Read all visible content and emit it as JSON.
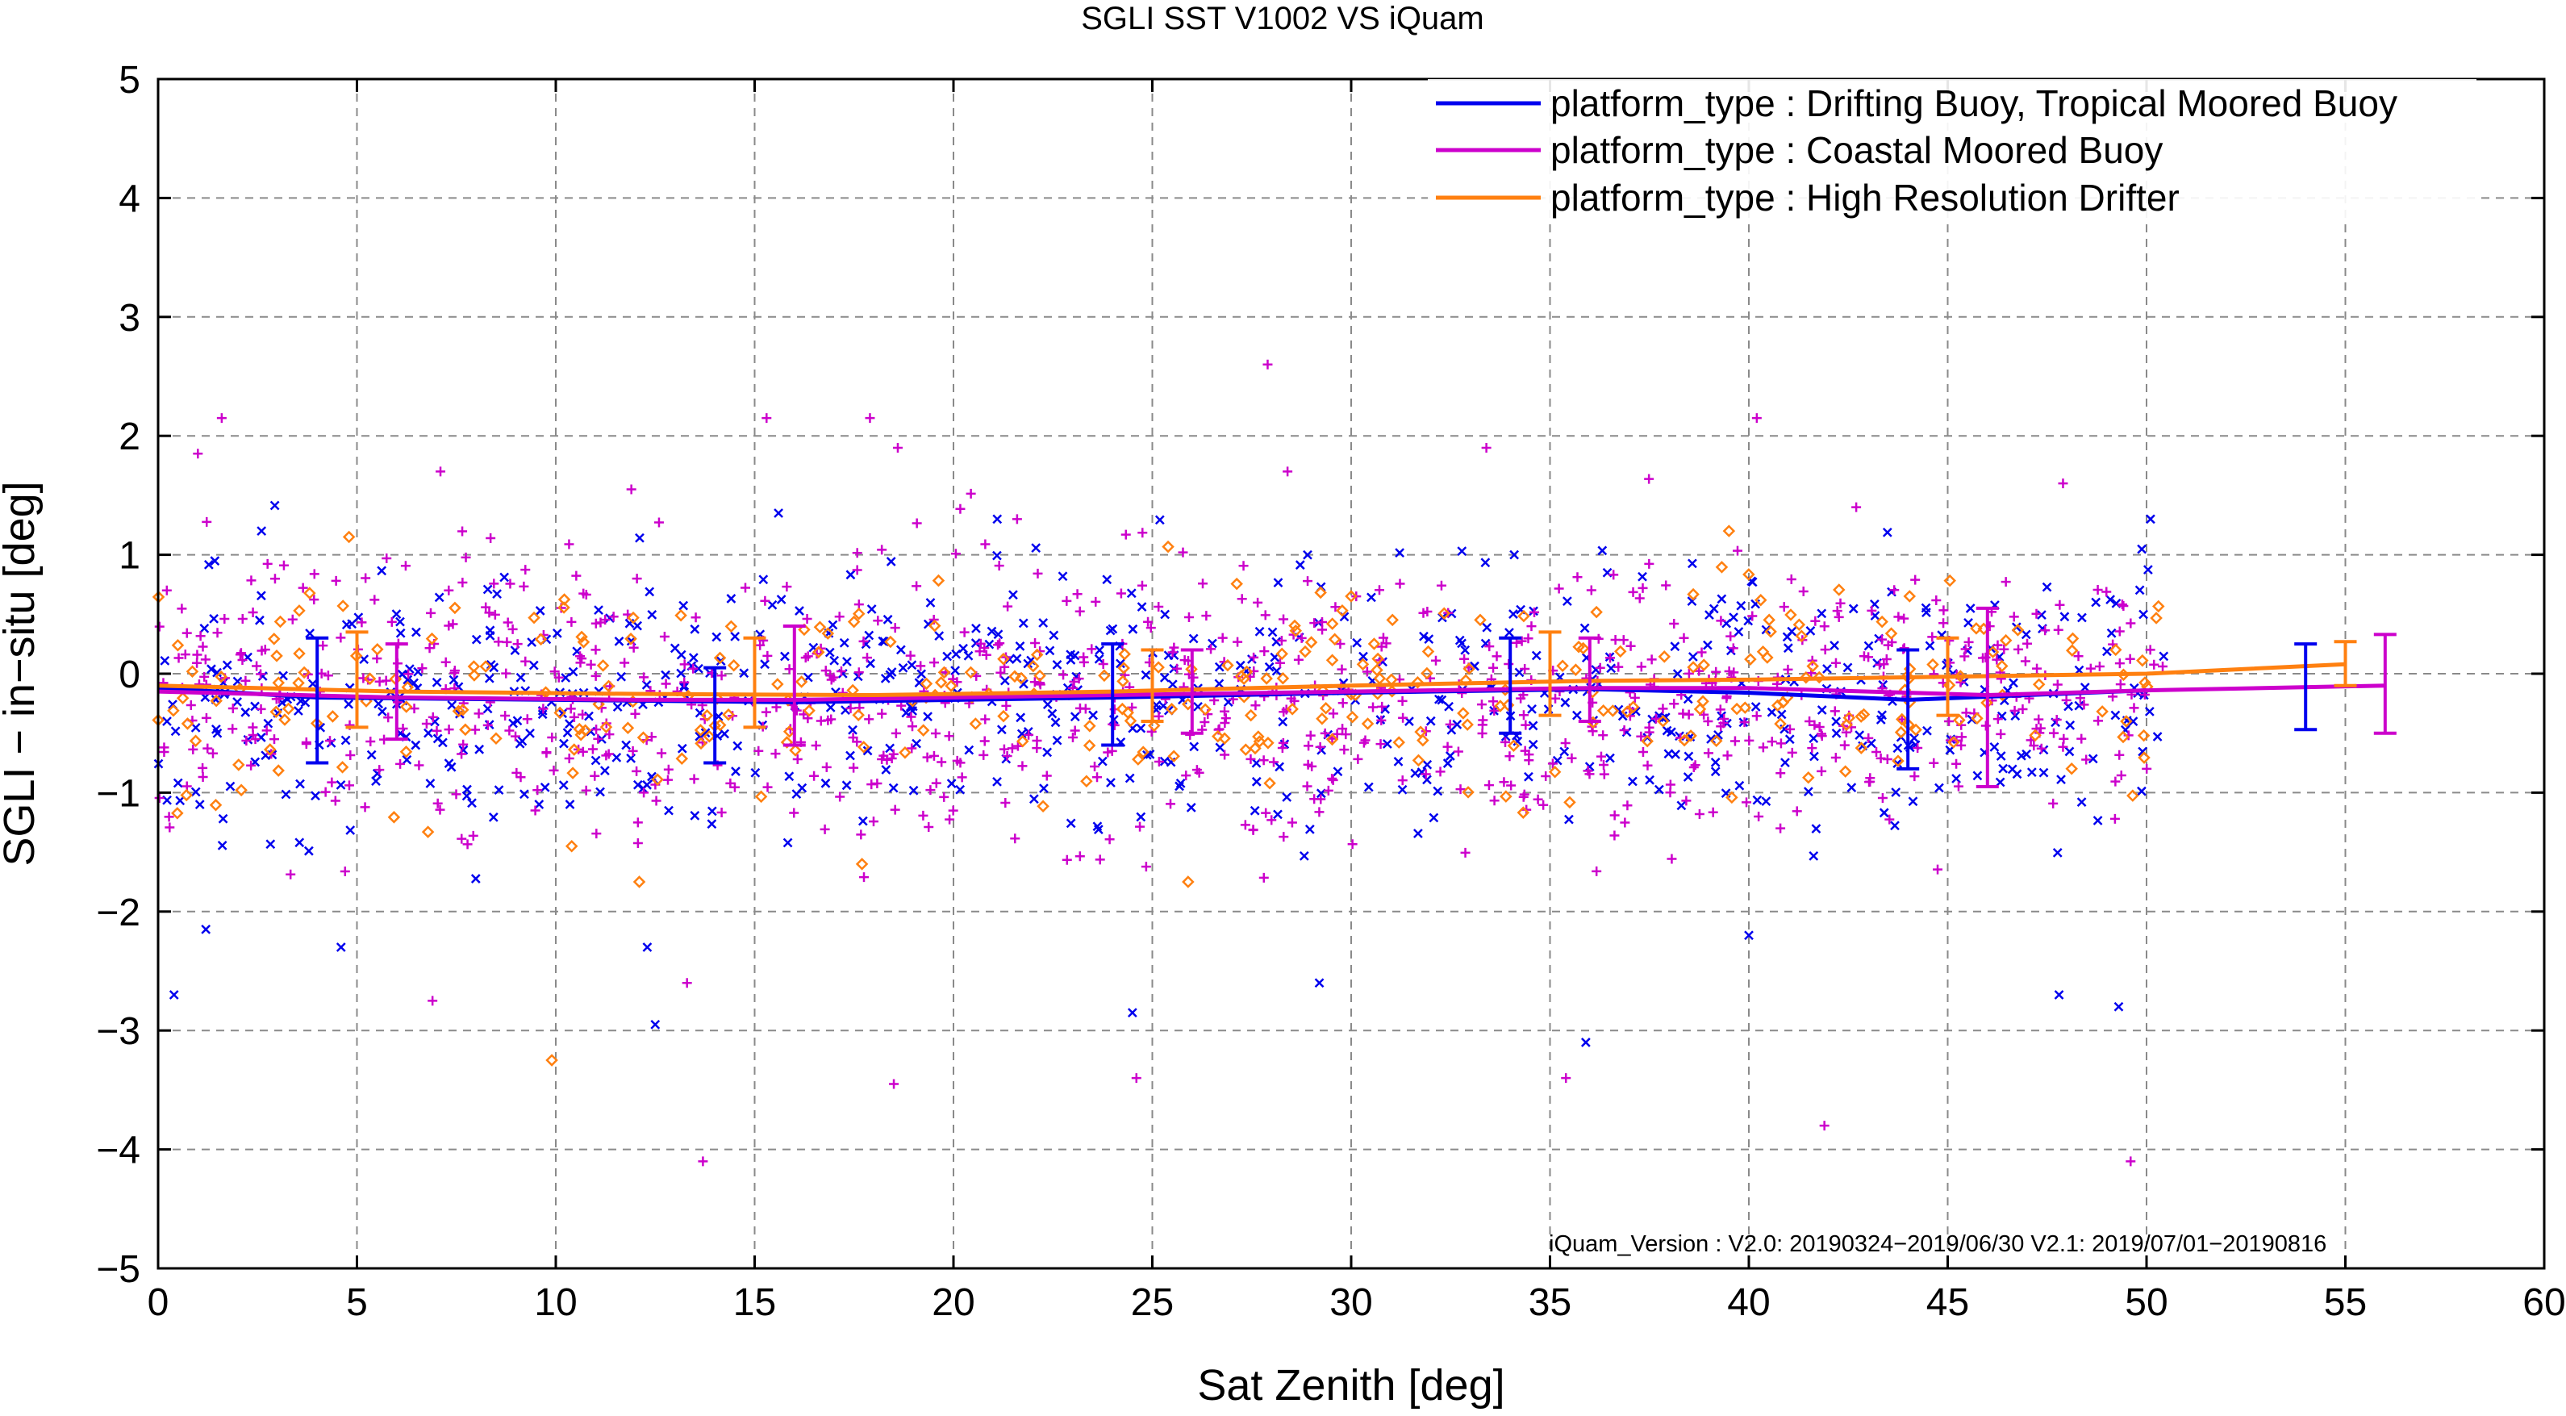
{
  "chart_data": {
    "type": "scatter",
    "title": "SGLI SST V1002 VS iQuam",
    "xlabel": "Sat Zenith [deg]",
    "ylabel": "SGLI − in−situ [deg]",
    "xlim": [
      0,
      60
    ],
    "ylim": [
      -5,
      5
    ],
    "xticks": [
      "0",
      "5",
      "10",
      "15",
      "20",
      "25",
      "30",
      "35",
      "40",
      "45",
      "50",
      "55",
      "60"
    ],
    "yticks": [
      "−5",
      "−4",
      "−3",
      "−2",
      "−1",
      "0",
      "1",
      "2",
      "3",
      "4",
      "5"
    ],
    "grid": true,
    "legend_position": "top-right",
    "annotation": "iQuam_Version :   V2.0: 20190324−2019/06/30 V2.1: 2019/07/01−20190816",
    "series": [
      {
        "name": "platform_type : Drifting Buoy, Tropical Moored Buoy",
        "color": "#0000ee",
        "marker": "x",
        "trend_x": [
          0,
          4,
          10,
          16,
          24,
          30,
          36,
          40,
          44,
          50
        ],
        "trend_y": [
          -0.12,
          -0.2,
          -0.22,
          -0.24,
          -0.2,
          -0.16,
          -0.13,
          -0.16,
          -0.22,
          -0.14
        ],
        "errorbars": [
          {
            "x": 4,
            "low": -0.75,
            "high": 0.3
          },
          {
            "x": 14,
            "low": -0.75,
            "high": 0.05
          },
          {
            "x": 24,
            "low": -0.6,
            "high": 0.25
          },
          {
            "x": 34,
            "low": -0.5,
            "high": 0.3
          },
          {
            "x": 44,
            "low": -0.8,
            "high": 0.2
          },
          {
            "x": 54,
            "low": -0.47,
            "high": 0.25
          }
        ],
        "scatter_y_center": -0.2,
        "scatter_y_spread": 0.55,
        "scatter_outliers": [
          [
            0.4,
            -2.7
          ],
          [
            1.2,
            -2.15
          ],
          [
            4.6,
            -2.3
          ],
          [
            12.5,
            -2.95
          ],
          [
            12.3,
            -2.3
          ],
          [
            24.5,
            -2.85
          ],
          [
            29.2,
            -2.6
          ],
          [
            35.9,
            -3.1
          ],
          [
            40.0,
            -2.2
          ],
          [
            47.8,
            -2.7
          ],
          [
            49.3,
            -2.8
          ],
          [
            50.1,
            1.3
          ],
          [
            34.1,
            1.0
          ],
          [
            2.6,
            1.2
          ],
          [
            21.1,
            1.3
          ],
          [
            15.6,
            1.35
          ]
        ]
      },
      {
        "name": "platform_type : Coastal Moored Buoy",
        "color": "#cc00cc",
        "marker": "+",
        "trend_x": [
          0,
          6,
          12,
          16,
          20,
          26,
          32,
          36,
          40,
          46,
          50,
          56
        ],
        "trend_y": [
          -0.15,
          -0.2,
          -0.22,
          -0.22,
          -0.2,
          -0.17,
          -0.14,
          -0.12,
          -0.12,
          -0.18,
          -0.14,
          -0.1
        ],
        "errorbars": [
          {
            "x": 6,
            "low": -0.55,
            "high": 0.25
          },
          {
            "x": 16,
            "low": -0.6,
            "high": 0.4
          },
          {
            "x": 26,
            "low": -0.5,
            "high": 0.2
          },
          {
            "x": 36,
            "low": -0.4,
            "high": 0.3
          },
          {
            "x": 46,
            "low": -0.95,
            "high": 0.55
          },
          {
            "x": 56,
            "low": -0.5,
            "high": 0.33
          }
        ],
        "scatter_y_center": -0.2,
        "scatter_y_spread": 0.6,
        "scatter_outliers": [
          [
            1.0,
            1.85
          ],
          [
            1.6,
            2.15
          ],
          [
            7.1,
            1.7
          ],
          [
            11.9,
            1.55
          ],
          [
            13.7,
            -4.1
          ],
          [
            17.9,
            2.15
          ],
          [
            18.6,
            1.9
          ],
          [
            15.3,
            2.15
          ],
          [
            18.5,
            -3.45
          ],
          [
            24.6,
            -3.4
          ],
          [
            27.9,
            2.6
          ],
          [
            28.4,
            1.7
          ],
          [
            33.4,
            1.9
          ],
          [
            35.4,
            -3.4
          ],
          [
            40.2,
            2.15
          ],
          [
            41.9,
            -3.8
          ],
          [
            42.7,
            1.4
          ],
          [
            47.9,
            1.6
          ],
          [
            49.6,
            -4.1
          ],
          [
            6.9,
            -2.75
          ],
          [
            13.3,
            -2.6
          ],
          [
            21.6,
            1.3
          ]
        ]
      },
      {
        "name": "platform_type : High Resolution Drifter",
        "color": "#ff8010",
        "marker": "diamond",
        "trend_x": [
          0,
          6,
          12,
          18,
          24,
          30,
          36,
          40,
          46,
          50,
          55
        ],
        "trend_y": [
          -0.1,
          -0.15,
          -0.17,
          -0.18,
          -0.15,
          -0.1,
          -0.06,
          -0.05,
          -0.02,
          0.0,
          0.08
        ],
        "errorbars": [
          {
            "x": 5,
            "low": -0.45,
            "high": 0.35
          },
          {
            "x": 15,
            "low": -0.45,
            "high": 0.3
          },
          {
            "x": 25,
            "low": -0.4,
            "high": 0.2
          },
          {
            "x": 35,
            "low": -0.35,
            "high": 0.35
          },
          {
            "x": 45,
            "low": -0.35,
            "high": 0.3
          },
          {
            "x": 55,
            "low": -0.1,
            "high": 0.27
          }
        ],
        "scatter_y_center": -0.15,
        "scatter_y_spread": 0.45,
        "scatter_outliers": [
          [
            9.9,
            -3.25
          ],
          [
            4.8,
            1.15
          ],
          [
            17.7,
            -1.6
          ],
          [
            25.9,
            -1.75
          ],
          [
            39.5,
            1.2
          ],
          [
            10.4,
            -1.45
          ],
          [
            12.1,
            -1.75
          ]
        ]
      }
    ]
  }
}
